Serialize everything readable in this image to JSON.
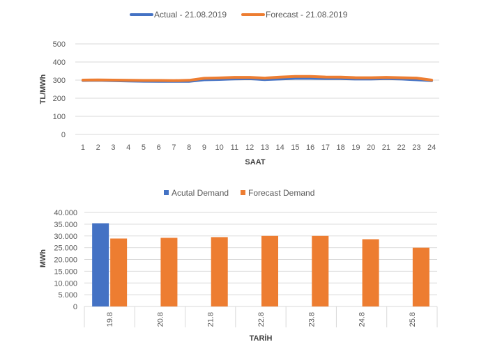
{
  "chart_data": [
    {
      "type": "line",
      "title": "",
      "xlabel": "SAAT",
      "ylabel": "TL/MWh",
      "ylim": [
        0,
        500
      ],
      "yticks": [
        "0",
        "100",
        "200",
        "300",
        "400",
        "500"
      ],
      "x": [
        "1",
        "2",
        "3",
        "4",
        "5",
        "6",
        "7",
        "8",
        "9",
        "10",
        "11",
        "12",
        "13",
        "14",
        "15",
        "16",
        "17",
        "18",
        "19",
        "20",
        "21",
        "22",
        "23",
        "24"
      ],
      "legend_position": "top",
      "grid": true,
      "series": [
        {
          "name": "Actual - 21.08.2019",
          "color": "#4472c4",
          "values": [
            298,
            299,
            297,
            295,
            294,
            293,
            293,
            293,
            302,
            304,
            307,
            308,
            303,
            306,
            310,
            310,
            309,
            309,
            306,
            306,
            309,
            306,
            302,
            297
          ]
        },
        {
          "name": "Forecast - 21.08.2019",
          "color": "#ed7d31",
          "values": [
            300,
            301,
            300,
            299,
            298,
            298,
            297,
            299,
            310,
            312,
            315,
            315,
            311,
            316,
            320,
            320,
            317,
            316,
            313,
            313,
            315,
            313,
            311,
            300
          ]
        }
      ]
    },
    {
      "type": "bar",
      "title": "",
      "xlabel": "TARİH",
      "ylabel": "MWh",
      "ylim": [
        0,
        40000
      ],
      "yticks": [
        "0",
        "5.000",
        "10.000",
        "15.000",
        "20.000",
        "25.000",
        "30.000",
        "35.000",
        "40.000"
      ],
      "categories": [
        "19.8",
        "20.8",
        "21.8",
        "22.8",
        "23.8",
        "24.8",
        "25.8"
      ],
      "legend_position": "top",
      "grid": true,
      "series": [
        {
          "name": "Acutal Demand",
          "color": "#4472c4",
          "values": [
            35400,
            null,
            null,
            null,
            null,
            null,
            null
          ]
        },
        {
          "name": "Forecast Demand",
          "color": "#ed7d31",
          "values": [
            28900,
            29200,
            29500,
            30000,
            30000,
            28600,
            25000
          ]
        }
      ]
    }
  ]
}
